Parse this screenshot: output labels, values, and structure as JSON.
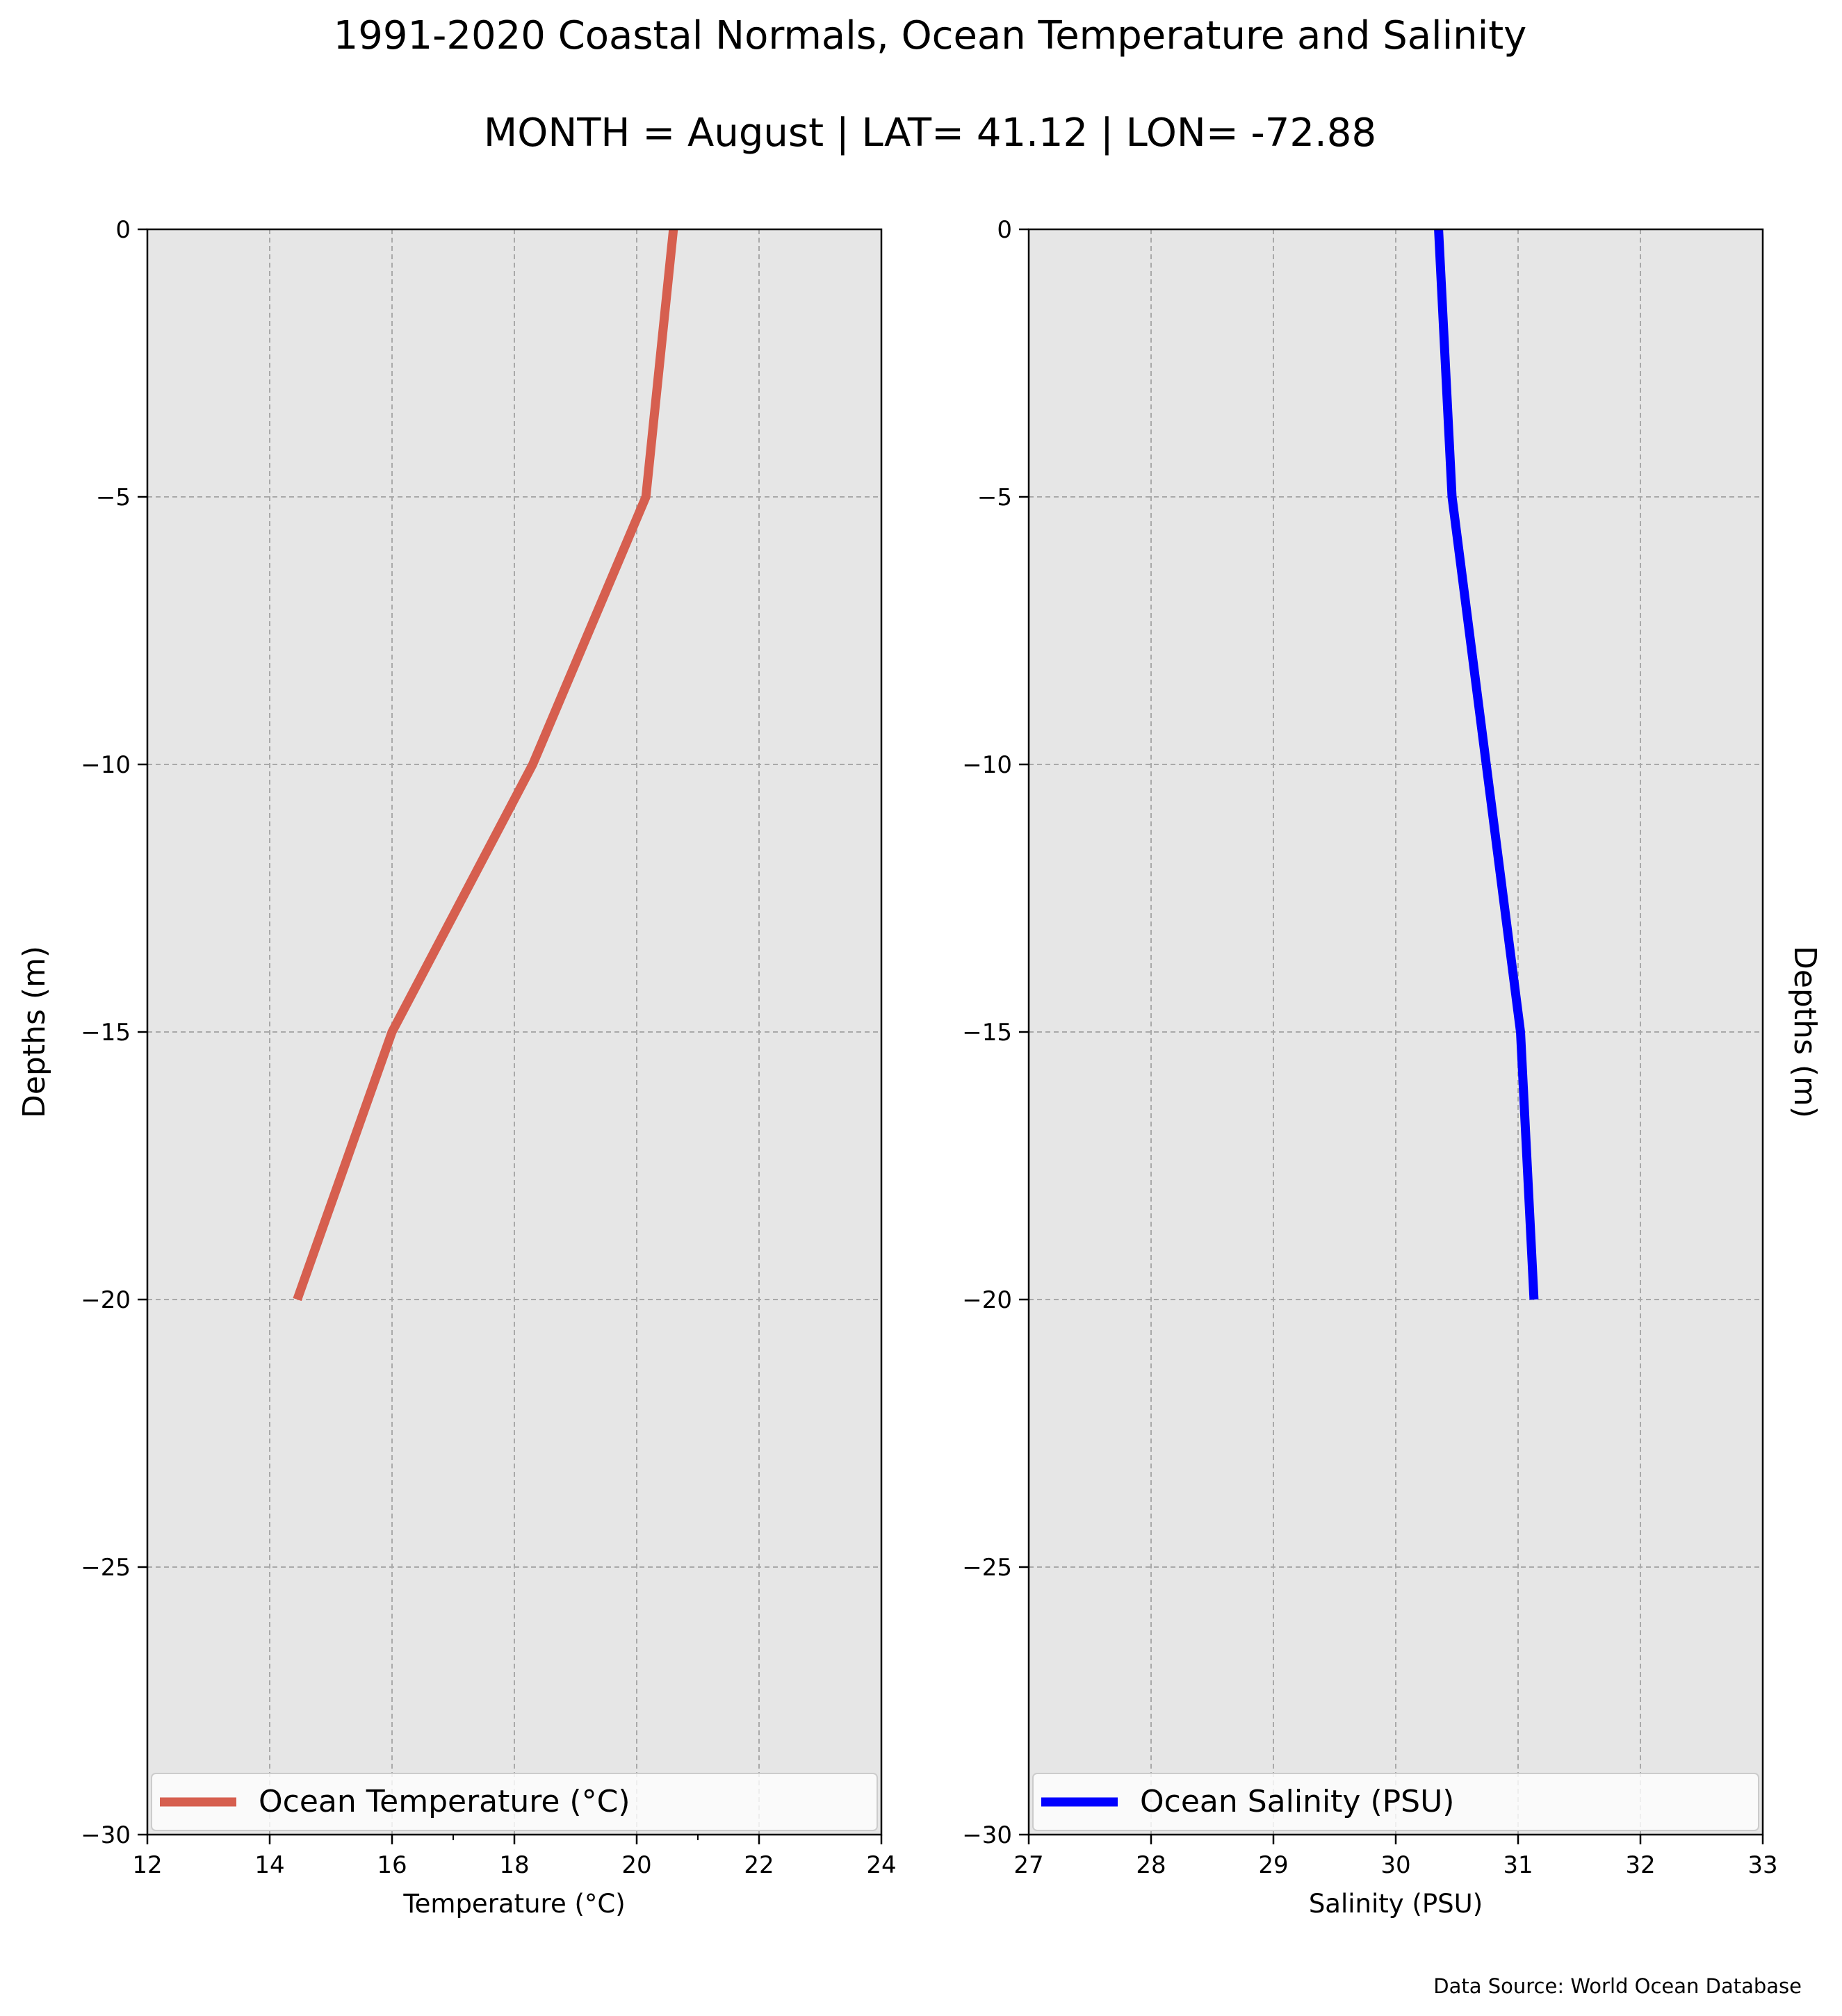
{
  "figure": {
    "title": "1991-2020 Coastal Normals, Ocean Temperature and Salinity",
    "subtitle": "MONTH = August | LAT= 41.12 | LON= -72.88",
    "source_note": "Data Source: World Ocean Database"
  },
  "colors": {
    "temperature_line": "#d65f4f",
    "salinity_line": "#0000ff",
    "plot_background": "#e6e6e6",
    "grid": "#a9a9a9"
  },
  "chart_data": [
    {
      "type": "line",
      "xlabel": "Temperature (°C)",
      "ylabel": "Depths (m)",
      "ylabel_side": "left",
      "xlim": [
        12,
        24
      ],
      "ylim": [
        -30,
        0
      ],
      "xticks": [
        12,
        14,
        16,
        18,
        20,
        22,
        24
      ],
      "xtick_labels": [
        "12",
        "14",
        "16",
        "18",
        "20",
        "22",
        "24"
      ],
      "yticks": [
        0,
        -5,
        -10,
        -15,
        -20,
        -25,
        -30
      ],
      "ytick_labels": [
        "0",
        "−5",
        "−10",
        "−15",
        "−20",
        "−25",
        "−30"
      ],
      "grid": true,
      "legend_position": "lower-center",
      "series": [
        {
          "name": "Ocean Temperature (°C)",
          "color": "#d65f4f",
          "points": [
            {
              "x": 20.6,
              "y": 0
            },
            {
              "x": 20.15,
              "y": -5
            },
            {
              "x": 18.3,
              "y": -10
            },
            {
              "x": 16.0,
              "y": -15
            },
            {
              "x": 14.45,
              "y": -20
            }
          ]
        }
      ]
    },
    {
      "type": "line",
      "xlabel": "Salinity (PSU)",
      "ylabel": "Depths (m)",
      "ylabel_side": "right",
      "xlim": [
        27,
        33
      ],
      "ylim": [
        -30,
        0
      ],
      "xticks": [
        27,
        28,
        29,
        30,
        31,
        32,
        33
      ],
      "xtick_labels": [
        "27",
        "28",
        "29",
        "30",
        "31",
        "32",
        "33"
      ],
      "yticks": [
        0,
        -5,
        -10,
        -15,
        -20,
        -25,
        -30
      ],
      "ytick_labels": [
        "0",
        "−5",
        "−10",
        "−15",
        "−20",
        "−25",
        "−30"
      ],
      "grid": true,
      "legend_position": "lower-center",
      "series": [
        {
          "name": "Ocean Salinity (PSU)",
          "color": "#0000ff",
          "points": [
            {
              "x": 30.35,
              "y": 0
            },
            {
              "x": 30.46,
              "y": -5
            },
            {
              "x": 30.74,
              "y": -10
            },
            {
              "x": 31.02,
              "y": -15
            },
            {
              "x": 31.13,
              "y": -20
            }
          ]
        }
      ]
    }
  ]
}
